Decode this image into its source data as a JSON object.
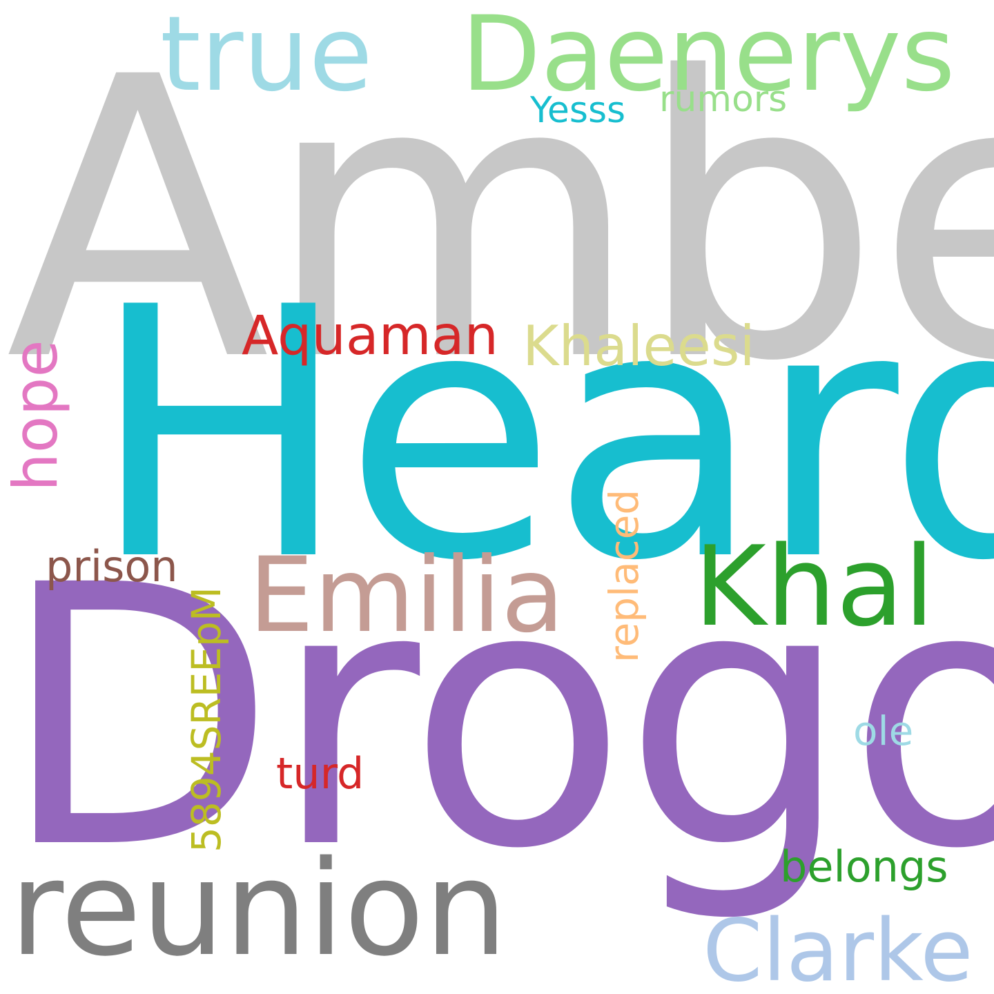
{
  "words": [
    {
      "text": "Amber",
      "color": "#c7c7c7",
      "orientation": "horizontal"
    },
    {
      "text": "Heard",
      "color": "#17becf",
      "orientation": "horizontal"
    },
    {
      "text": "Drogo",
      "color": "#9467bd",
      "orientation": "horizontal"
    },
    {
      "text": "Daenerys",
      "color": "#98df8a",
      "orientation": "horizontal"
    },
    {
      "text": "true",
      "color": "#9edae5",
      "orientation": "horizontal"
    },
    {
      "text": "Yesss",
      "color": "#17becf",
      "orientation": "horizontal"
    },
    {
      "text": "rumors",
      "color": "#98df8a",
      "orientation": "horizontal"
    },
    {
      "text": "Aquaman",
      "color": "#d62728",
      "orientation": "horizontal"
    },
    {
      "text": "Khaleesi",
      "color": "#dbdb8d",
      "orientation": "horizontal"
    },
    {
      "text": "hope",
      "color": "#e377c2",
      "orientation": "vertical"
    },
    {
      "text": "replaced",
      "color": "#ffbb78",
      "orientation": "vertical"
    },
    {
      "text": "prison",
      "color": "#8c564b",
      "orientation": "horizontal"
    },
    {
      "text": "Emilia",
      "color": "#c49c94",
      "orientation": "horizontal"
    },
    {
      "text": "Khal",
      "color": "#2ca02c",
      "orientation": "horizontal"
    },
    {
      "text": "5894SREEpM",
      "color": "#bcbd22",
      "orientation": "vertical"
    },
    {
      "text": "ole",
      "color": "#9edae5",
      "orientation": "horizontal"
    },
    {
      "text": "turd",
      "color": "#d62728",
      "orientation": "horizontal"
    },
    {
      "text": "belongs",
      "color": "#2ca02c",
      "orientation": "horizontal"
    },
    {
      "text": "reunion",
      "color": "#7f7f7f",
      "orientation": "horizontal"
    },
    {
      "text": "Clarke",
      "color": "#aec7e8",
      "orientation": "horizontal"
    }
  ]
}
